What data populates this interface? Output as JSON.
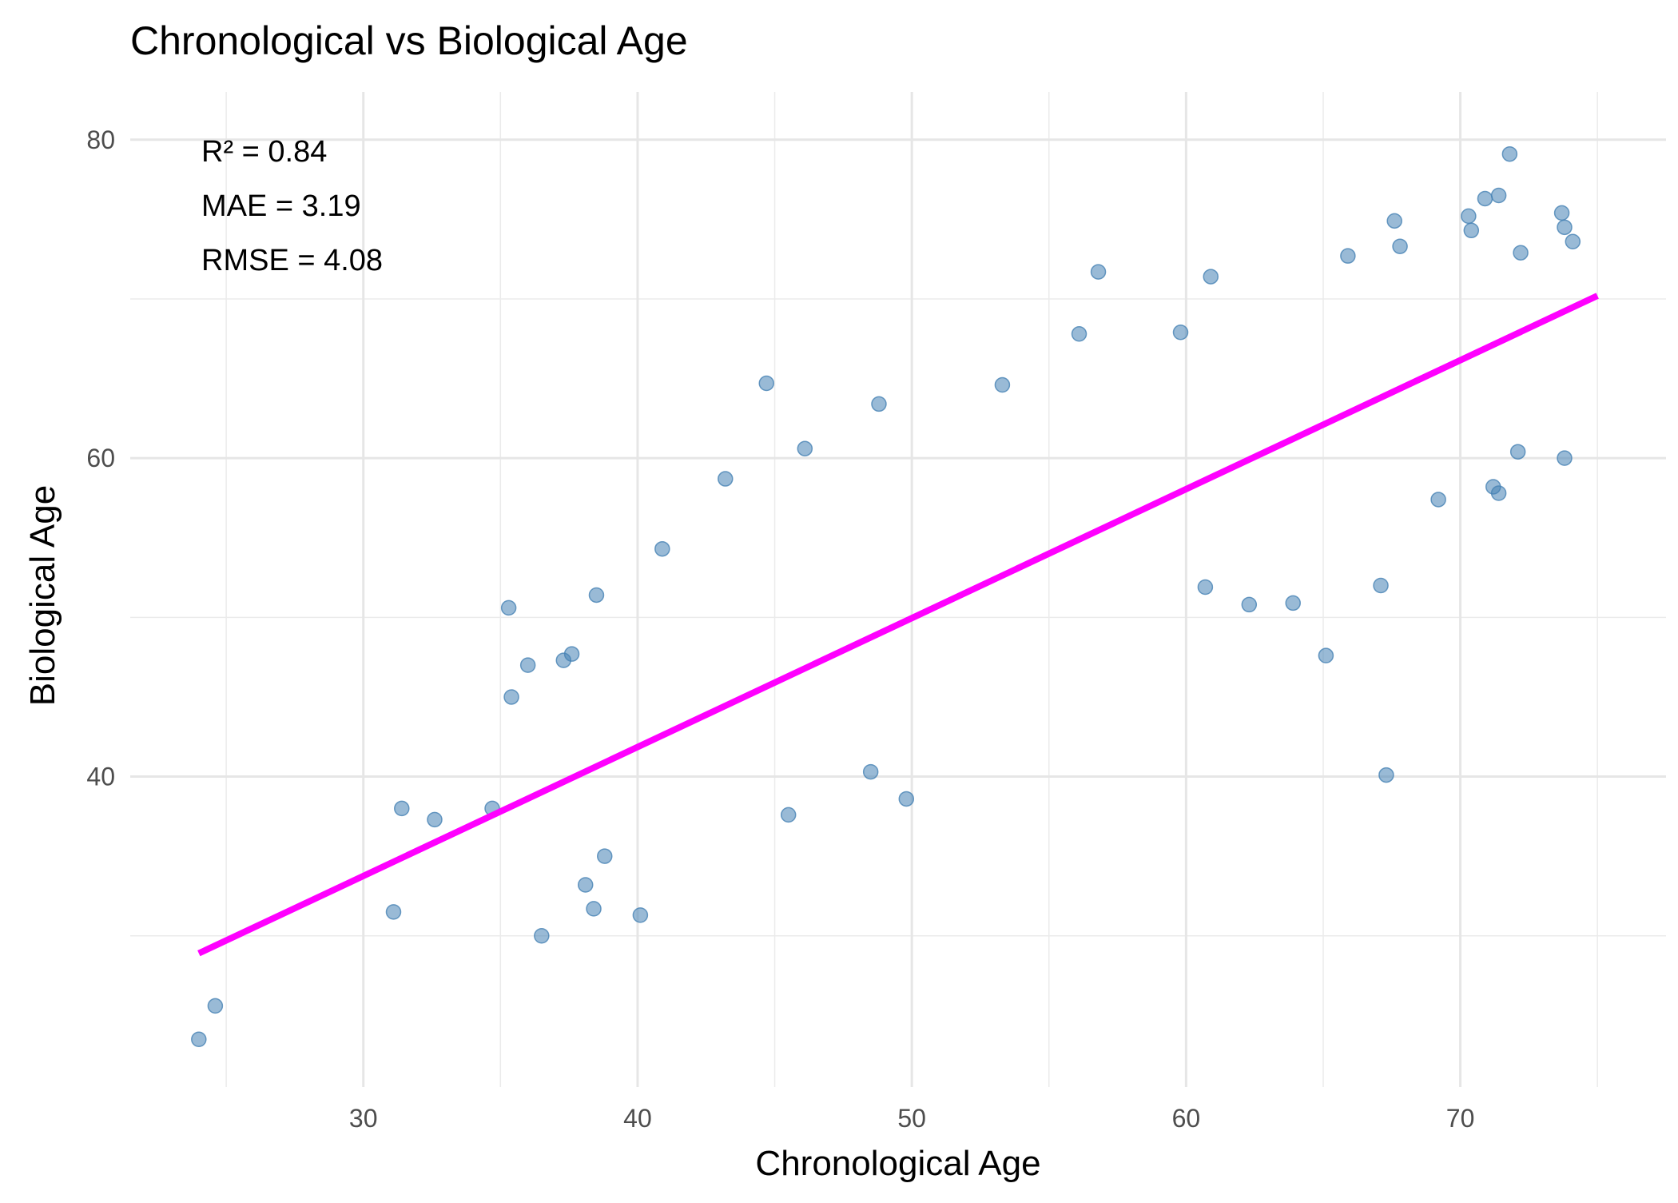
{
  "chart_data": {
    "type": "scatter",
    "title": "Chronological vs Biological Age",
    "xlabel": "Chronological Age",
    "ylabel": "Biological Age",
    "xlim": [
      21.5,
      77.5
    ],
    "ylim": [
      20.5,
      83
    ],
    "x_ticks": [
      30,
      40,
      50,
      60,
      70
    ],
    "x_tick_labels": [
      "30",
      "40",
      "50",
      "60",
      "70"
    ],
    "y_ticks": [
      40,
      60,
      80
    ],
    "y_tick_labels": [
      "40",
      "60",
      "80"
    ],
    "x_minor_ticks": [
      25,
      35,
      45,
      55,
      65,
      75
    ],
    "y_minor_ticks": [
      30,
      50,
      70
    ],
    "grid": true,
    "legend": "none",
    "annotations": [
      "R² = 0.84",
      "MAE = 3.19",
      "RMSE = 4.08"
    ],
    "point_color": "#4682B4",
    "point_opacity": 0.55,
    "fit_line_color": "#FF00FF",
    "fit_line": {
      "x": [
        24,
        75
      ],
      "y": [
        28.9,
        70.2
      ]
    },
    "series": [
      {
        "points": [
          [
            24,
            23.5
          ],
          [
            24.6,
            25.6
          ],
          [
            31.1,
            31.5
          ],
          [
            31.4,
            38
          ],
          [
            32.6,
            37.3
          ],
          [
            35.3,
            50.6
          ],
          [
            36.5,
            30
          ],
          [
            40.1,
            31.3
          ],
          [
            38.4,
            31.7
          ],
          [
            38.5,
            51.4
          ],
          [
            38.1,
            33.2
          ],
          [
            40.9,
            54.3
          ],
          [
            44.7,
            64.7
          ],
          [
            43.2,
            58.7
          ],
          [
            46.1,
            60.6
          ],
          [
            48.8,
            63.4
          ],
          [
            53.3,
            64.6
          ],
          [
            56.8,
            71.7
          ],
          [
            60.9,
            71.4
          ],
          [
            56.1,
            67.8
          ],
          [
            59.8,
            67.9
          ],
          [
            65.9,
            72.7
          ],
          [
            67.6,
            74.9
          ],
          [
            67.8,
            73.3
          ],
          [
            70.3,
            75.2
          ],
          [
            70.4,
            74.3
          ],
          [
            70.9,
            76.3
          ],
          [
            71.4,
            76.5
          ],
          [
            71.8,
            79.1
          ],
          [
            72.2,
            72.9
          ],
          [
            73.7,
            75.4
          ],
          [
            73.8,
            74.5
          ],
          [
            74.1,
            73.6
          ],
          [
            65.1,
            47.6
          ],
          [
            67.3,
            40.1
          ],
          [
            67.1,
            52
          ],
          [
            63.9,
            50.9
          ],
          [
            62.3,
            50.8
          ],
          [
            60.7,
            51.9
          ],
          [
            48.5,
            40.3
          ],
          [
            49.8,
            38.6
          ],
          [
            45.5,
            37.6
          ],
          [
            38.8,
            35
          ],
          [
            34.7,
            38
          ],
          [
            35.4,
            45
          ],
          [
            36,
            47
          ],
          [
            37.3,
            47.3
          ],
          [
            37.6,
            47.7
          ],
          [
            73.8,
            60
          ],
          [
            71.2,
            58.2
          ],
          [
            71.4,
            57.8
          ],
          [
            72.1,
            60.4
          ],
          [
            69.2,
            57.4
          ]
        ]
      }
    ]
  }
}
